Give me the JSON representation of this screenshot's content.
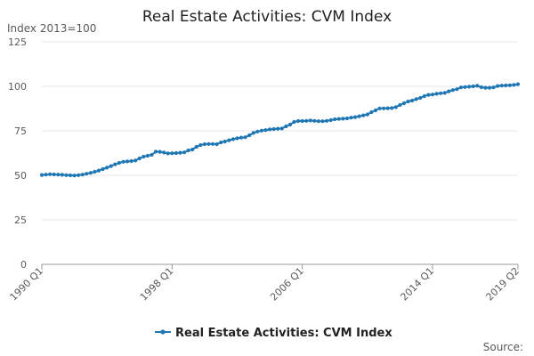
{
  "chart_data": {
    "type": "line",
    "title": "Real Estate Activities: CVM Index",
    "unit_label": "Index 2013=100",
    "source_label": "Source:",
    "ylim": [
      0,
      125
    ],
    "yticks": [
      "0",
      "25",
      "50",
      "75",
      "100",
      "125"
    ],
    "ytick_values": [
      0,
      25,
      50,
      75,
      100,
      125
    ],
    "xtick_labels": [
      "1990 Q1",
      "1998 Q1",
      "2006 Q1",
      "2014 Q1",
      "2019 Q2"
    ],
    "xtick_index": [
      0,
      32,
      64,
      96,
      117
    ],
    "grid": true,
    "legend_position": "bottom",
    "color": "#1f77b4",
    "series": [
      {
        "name": "Real Estate Activities: CVM Index",
        "x": [
          "1990 Q1",
          "1990 Q2",
          "1990 Q3",
          "1990 Q4",
          "1991 Q1",
          "1991 Q2",
          "1991 Q3",
          "1991 Q4",
          "1992 Q1",
          "1992 Q2",
          "1992 Q3",
          "1992 Q4",
          "1993 Q1",
          "1993 Q2",
          "1993 Q3",
          "1993 Q4",
          "1994 Q1",
          "1994 Q2",
          "1994 Q3",
          "1994 Q4",
          "1995 Q1",
          "1995 Q2",
          "1995 Q3",
          "1995 Q4",
          "1996 Q1",
          "1996 Q2",
          "1996 Q3",
          "1996 Q4",
          "1997 Q1",
          "1997 Q2",
          "1997 Q3",
          "1997 Q4",
          "1998 Q1",
          "1998 Q2",
          "1998 Q3",
          "1998 Q4",
          "1999 Q1",
          "1999 Q2",
          "1999 Q3",
          "1999 Q4",
          "2000 Q1",
          "2000 Q2",
          "2000 Q3",
          "2000 Q4",
          "2001 Q1",
          "2001 Q2",
          "2001 Q3",
          "2001 Q4",
          "2002 Q1",
          "2002 Q2",
          "2002 Q3",
          "2002 Q4",
          "2003 Q1",
          "2003 Q2",
          "2003 Q3",
          "2003 Q4",
          "2004 Q1",
          "2004 Q2",
          "2004 Q3",
          "2004 Q4",
          "2005 Q1",
          "2005 Q2",
          "2005 Q3",
          "2005 Q4",
          "2006 Q1",
          "2006 Q2",
          "2006 Q3",
          "2006 Q4",
          "2007 Q1",
          "2007 Q2",
          "2007 Q3",
          "2007 Q4",
          "2008 Q1",
          "2008 Q2",
          "2008 Q3",
          "2008 Q4",
          "2009 Q1",
          "2009 Q2",
          "2009 Q3",
          "2009 Q4",
          "2010 Q1",
          "2010 Q2",
          "2010 Q3",
          "2010 Q4",
          "2011 Q1",
          "2011 Q2",
          "2011 Q3",
          "2011 Q4",
          "2012 Q1",
          "2012 Q2",
          "2012 Q3",
          "2012 Q4",
          "2013 Q1",
          "2013 Q2",
          "2013 Q3",
          "2013 Q4",
          "2014 Q1",
          "2014 Q2",
          "2014 Q3",
          "2014 Q4",
          "2015 Q1",
          "2015 Q2",
          "2015 Q3",
          "2015 Q4",
          "2016 Q1",
          "2016 Q2",
          "2016 Q3",
          "2016 Q4",
          "2017 Q1",
          "2017 Q2",
          "2017 Q3",
          "2017 Q4",
          "2018 Q1",
          "2018 Q2",
          "2018 Q3",
          "2018 Q4",
          "2019 Q1",
          "2019 Q2"
        ],
        "values": [
          50.2,
          50.4,
          50.6,
          50.5,
          50.4,
          50.3,
          50.1,
          50.0,
          49.9,
          50.1,
          50.4,
          50.9,
          51.4,
          52.0,
          52.7,
          53.5,
          54.3,
          55.2,
          56.2,
          57.0,
          57.6,
          57.8,
          58.0,
          58.3,
          59.5,
          60.5,
          61.0,
          61.5,
          63.3,
          63.2,
          62.8,
          62.3,
          62.4,
          62.5,
          62.7,
          62.9,
          64.0,
          64.5,
          66.0,
          67.0,
          67.5,
          67.6,
          67.6,
          67.5,
          68.5,
          69.0,
          69.7,
          70.3,
          70.8,
          71.2,
          71.4,
          72.5,
          73.8,
          74.6,
          75.1,
          75.4,
          75.8,
          76.0,
          76.2,
          76.3,
          77.5,
          78.5,
          80.0,
          80.5,
          80.5,
          80.6,
          80.8,
          80.6,
          80.4,
          80.4,
          80.6,
          81.0,
          81.5,
          81.7,
          81.8,
          82.0,
          82.4,
          82.7,
          83.2,
          83.7,
          84.2,
          85.5,
          86.5,
          87.6,
          87.6,
          87.7,
          87.8,
          88.3,
          89.5,
          90.5,
          91.5,
          92.0,
          92.8,
          93.5,
          94.5,
          95.2,
          95.4,
          95.8,
          96.1,
          96.3,
          97.2,
          97.9,
          98.4,
          99.4,
          99.6,
          99.8,
          100.0,
          100.3,
          99.5,
          99.2,
          99.2,
          99.4,
          100.2,
          100.4,
          100.5,
          100.6,
          100.8,
          101.2
        ]
      }
    ]
  }
}
